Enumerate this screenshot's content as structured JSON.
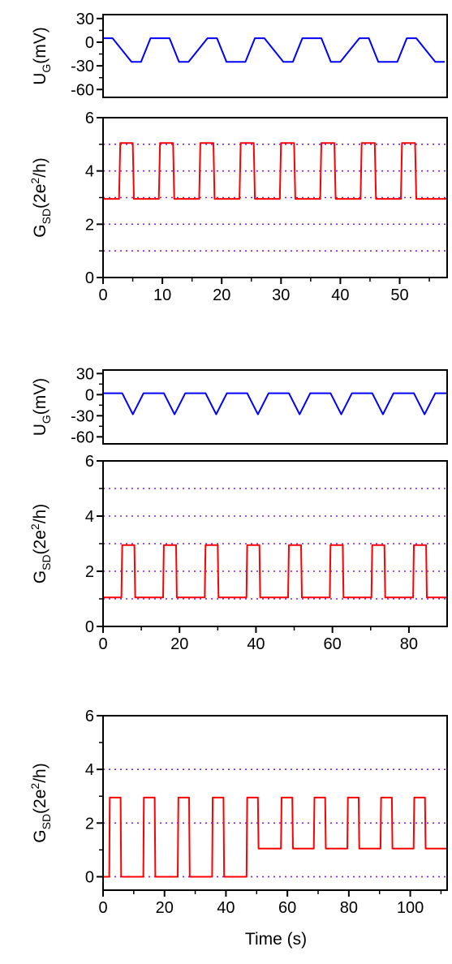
{
  "xlabel_bottom": "Time (s)",
  "chart_data": [
    {
      "type": "line",
      "panel": "1a",
      "ylabel": {
        "main": "U",
        "sub": "G",
        "tail": "(mV)"
      },
      "xlim": [
        0,
        58
      ],
      "ylim": [
        -70,
        35
      ],
      "yticks": [
        30,
        0,
        -30,
        -60
      ],
      "xticks": [],
      "series": [
        {
          "color": "#0000ff",
          "x": [
            0,
            1.6,
            4.8,
            6.4,
            8.0,
            11.2,
            12.8,
            14.4,
            17.6,
            19.2,
            20.8,
            24.0,
            25.6,
            27.2,
            30.4,
            32.0,
            33.6,
            36.8,
            38.4,
            40.0,
            43.2,
            44.8,
            46.4,
            49.6,
            51.2,
            52.8,
            56.0,
            57.6
          ],
          "y": [
            5,
            5,
            -25,
            -25,
            5,
            5,
            -25,
            -25,
            5,
            5,
            -25,
            -25,
            5,
            5,
            -25,
            -25,
            5,
            5,
            -25,
            -25,
            5,
            5,
            -25,
            -25,
            5,
            5,
            -25,
            -25
          ]
        }
      ]
    },
    {
      "type": "line",
      "panel": "1b",
      "ylabel": {
        "main": "G",
        "sub": "SD",
        "pre": "(2e",
        "sup": "2",
        "tail": "/h)"
      },
      "xlim": [
        0,
        58
      ],
      "ylim": [
        0,
        6
      ],
      "yticks": [
        0,
        2,
        4,
        6
      ],
      "xticks": [
        0,
        10,
        20,
        30,
        40,
        50
      ],
      "guides": [
        1,
        2,
        3,
        4,
        5
      ],
      "series": [
        {
          "color": "#ff0000",
          "x": [
            0,
            2.7,
            2.9,
            5.0,
            5.2,
            9.4,
            9.6,
            11.8,
            12.0,
            16.2,
            16.4,
            18.6,
            18.8,
            23.0,
            23.2,
            25.4,
            25.6,
            29.8,
            30.0,
            32.2,
            32.4,
            36.6,
            36.8,
            39.0,
            39.2,
            43.4,
            43.6,
            45.8,
            46.0,
            50.2,
            50.4,
            52.6,
            52.8,
            58
          ],
          "y": [
            2.95,
            2.95,
            5.05,
            5.05,
            2.95,
            2.95,
            5.05,
            5.05,
            2.95,
            2.95,
            5.05,
            5.05,
            2.95,
            2.95,
            5.05,
            5.05,
            2.95,
            2.95,
            5.05,
            5.05,
            2.95,
            2.95,
            5.05,
            5.05,
            2.95,
            2.95,
            5.05,
            5.05,
            2.95,
            2.95,
            5.05,
            5.05,
            2.95,
            2.95
          ]
        }
      ]
    },
    {
      "type": "line",
      "panel": "2a",
      "ylabel": {
        "main": "U",
        "sub": "G",
        "tail": "(mV)"
      },
      "xlim": [
        0,
        90
      ],
      "ylim": [
        -70,
        35
      ],
      "yticks": [
        30,
        0,
        -30,
        -60
      ],
      "xticks": [],
      "series": [
        {
          "color": "#0000ff",
          "x": [
            0,
            5.0,
            7.8,
            10.6,
            15.9,
            18.7,
            21.5,
            26.8,
            29.6,
            32.4,
            37.7,
            40.5,
            43.3,
            48.6,
            51.4,
            54.2,
            59.5,
            62.3,
            65.1,
            70.4,
            73.2,
            76.0,
            81.3,
            84.1,
            86.9,
            90
          ],
          "y": [
            2,
            2,
            -28,
            2,
            2,
            -28,
            2,
            2,
            -28,
            2,
            2,
            -28,
            2,
            2,
            -28,
            2,
            2,
            -28,
            2,
            2,
            -28,
            2,
            2,
            -28,
            2,
            2
          ]
        }
      ]
    },
    {
      "type": "line",
      "panel": "2b",
      "ylabel": {
        "main": "G",
        "sub": "SD",
        "pre": "(2e",
        "sup": "2",
        "tail": "/h)"
      },
      "xlim": [
        0,
        90
      ],
      "ylim": [
        0,
        6
      ],
      "yticks": [
        0,
        2,
        4,
        6
      ],
      "xticks": [
        0,
        20,
        40,
        60,
        80
      ],
      "guides": [
        1,
        2,
        3,
        4,
        5
      ],
      "series": [
        {
          "color": "#ff0000",
          "x": [
            0,
            4.8,
            5.0,
            8.2,
            8.4,
            15.7,
            15.9,
            19.1,
            19.3,
            26.6,
            26.8,
            30.0,
            30.2,
            37.5,
            37.7,
            40.9,
            41.1,
            48.4,
            48.6,
            51.8,
            52.0,
            59.3,
            59.5,
            62.7,
            62.9,
            70.2,
            70.4,
            73.6,
            73.8,
            81.1,
            81.3,
            84.5,
            84.7,
            90
          ],
          "y": [
            1.05,
            1.05,
            2.95,
            2.95,
            1.05,
            1.05,
            2.95,
            2.95,
            1.05,
            1.05,
            2.95,
            2.95,
            1.05,
            1.05,
            2.95,
            2.95,
            1.05,
            1.05,
            2.95,
            2.95,
            1.05,
            1.05,
            2.95,
            2.95,
            1.05,
            1.05,
            2.95,
            2.95,
            1.05,
            1.05,
            2.95,
            2.95,
            1.05,
            1.05
          ]
        }
      ]
    },
    {
      "type": "line",
      "panel": "3",
      "ylabel": {
        "main": "G",
        "sub": "SD",
        "pre": "(2e",
        "sup": "2",
        "tail": "/h)"
      },
      "xlim": [
        0,
        112
      ],
      "ylim": [
        -0.5,
        6
      ],
      "yticks": [
        0,
        2,
        4,
        6
      ],
      "xticks": [
        0,
        20,
        40,
        60,
        80,
        100
      ],
      "guides": [
        0,
        2,
        4
      ],
      "series": [
        {
          "color": "#ff0000",
          "x": [
            0,
            2.0,
            2.2,
            5.7,
            5.9,
            13.1,
            13.3,
            16.8,
            17.0,
            24.3,
            24.5,
            28.0,
            28.2,
            35.5,
            35.7,
            39.2,
            39.4,
            46.7,
            46.9,
            50.4,
            50.6,
            57.9,
            58.1,
            61.6,
            61.8,
            68.6,
            68.8,
            72.3,
            72.5,
            79.5,
            79.7,
            83.2,
            83.4,
            90.3,
            90.5,
            94.0,
            94.2,
            101.1,
            101.3,
            104.8,
            105.0,
            112
          ],
          "y": [
            0,
            0,
            2.95,
            2.95,
            0,
            0,
            2.95,
            2.95,
            0,
            0,
            2.95,
            2.95,
            0,
            0,
            2.95,
            2.95,
            0,
            0,
            2.95,
            2.95,
            1.05,
            1.05,
            2.95,
            2.95,
            1.05,
            1.05,
            2.95,
            2.95,
            1.05,
            1.05,
            2.95,
            2.95,
            1.05,
            1.05,
            2.95,
            2.95,
            1.05,
            1.05,
            2.95,
            2.95,
            1.05,
            1.05
          ]
        }
      ]
    }
  ]
}
